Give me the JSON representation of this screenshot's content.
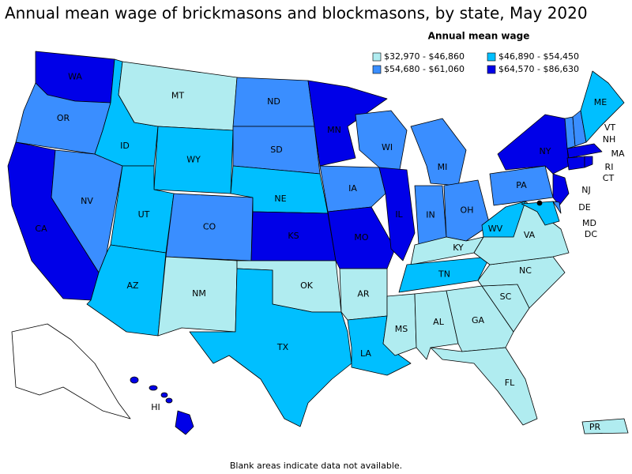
{
  "header": {
    "title": "Annual mean wage of brickmasons and blockmasons, by state, May 2020"
  },
  "legend": {
    "title": "Annual mean wage",
    "items": [
      {
        "label": "$32,970 - $46,860",
        "color": "#b0ecf0",
        "states": [
          "MT",
          "NM",
          "OK",
          "AR",
          "MS",
          "AL",
          "GA",
          "FL",
          "SC",
          "NC",
          "VA",
          "KY",
          "PR"
        ]
      },
      {
        "label": "$46,890 - $54,450",
        "color": "#00bfff",
        "states": [
          "ID",
          "WY",
          "UT",
          "AZ",
          "NE",
          "TX",
          "LA",
          "TN",
          "WV",
          "ME",
          "MD"
        ]
      },
      {
        "label": "$54,680 - $61,060",
        "color": "#3a8eff",
        "states": [
          "OR",
          "NV",
          "CO",
          "ND",
          "SD",
          "IA",
          "WI",
          "MI",
          "IN",
          "OH",
          "PA",
          "VT",
          "NH",
          "DE"
        ]
      },
      {
        "label": "$64,570 - $86,630",
        "color": "#0000e8",
        "states": [
          "WA",
          "CA",
          "MN",
          "KS",
          "MO",
          "IL",
          "NY",
          "NJ",
          "MA",
          "CT",
          "RI",
          "HI",
          "DC"
        ]
      }
    ]
  },
  "footnote": "Blank areas indicate data not available."
}
